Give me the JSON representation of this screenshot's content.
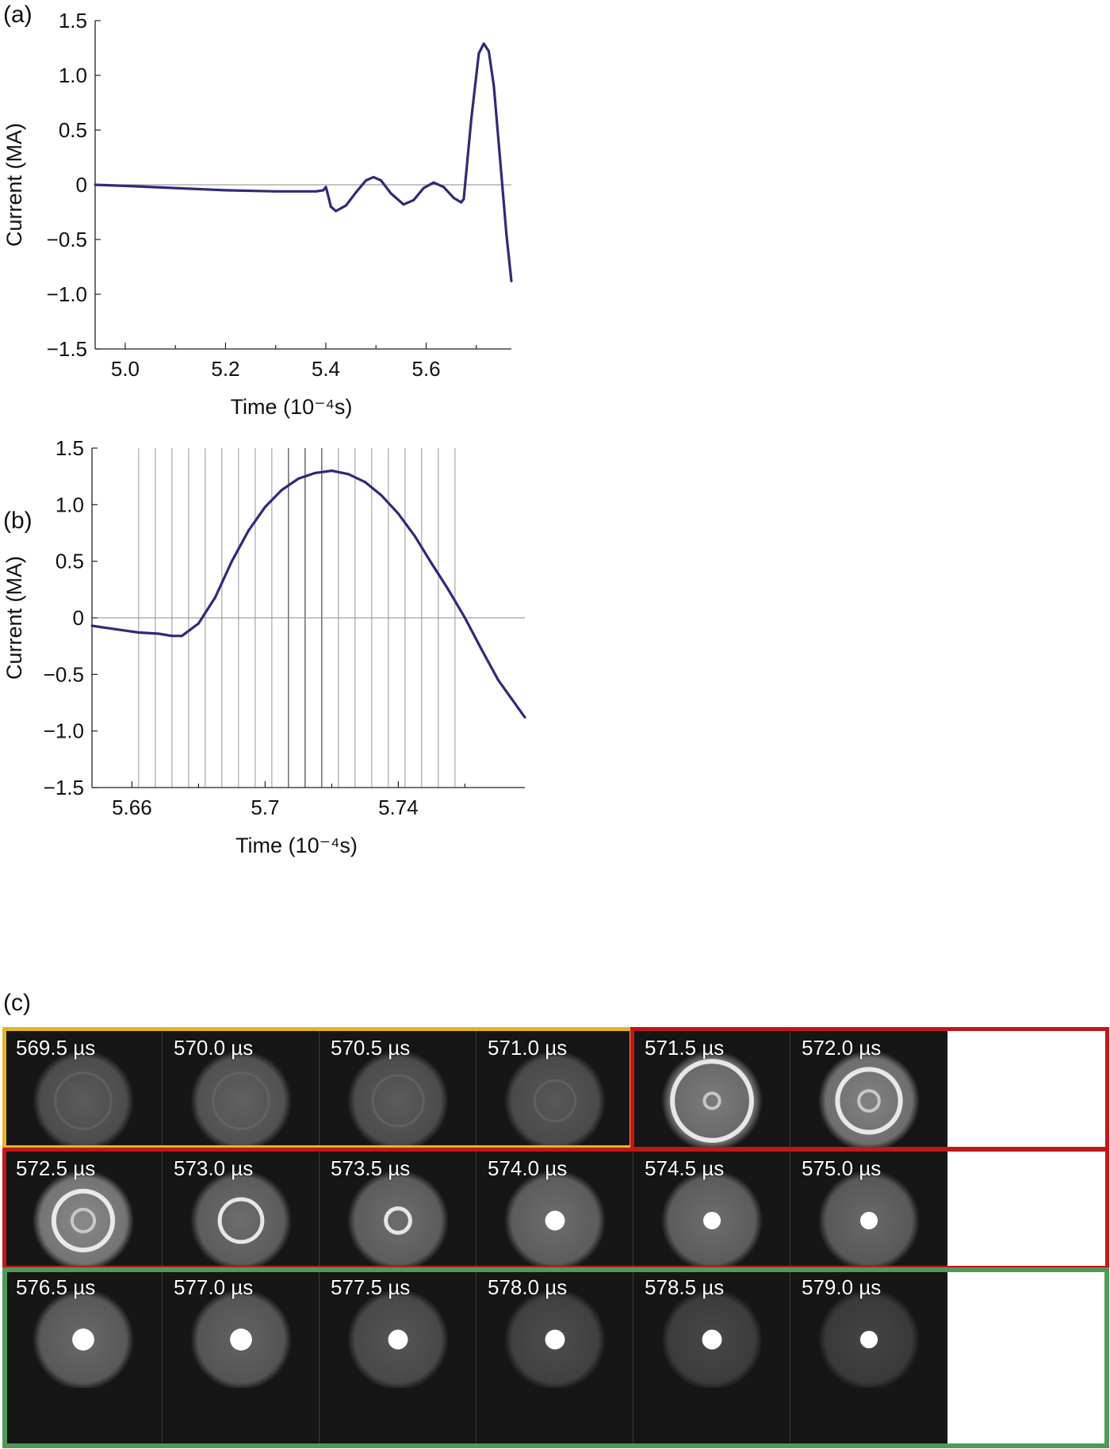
{
  "panels": {
    "a": {
      "label": "(a)"
    },
    "b": {
      "label": "(b)"
    },
    "c": {
      "label": "(c)"
    }
  },
  "chart_data": [
    {
      "id": "a",
      "type": "line",
      "xlabel": "Time (10⁻⁴s)",
      "ylabel": "Current (MA)",
      "xlim": [
        4.94,
        5.77
      ],
      "ylim": [
        -1.5,
        1.5
      ],
      "xticks": [
        5.0,
        5.2,
        5.4,
        5.6
      ],
      "xtick_labels": [
        "5.0",
        "5.2",
        "5.4",
        "5.6"
      ],
      "xticks_minor": [
        5.1,
        5.3,
        5.5,
        5.7
      ],
      "yticks": [
        1.5,
        1.0,
        0.5,
        0,
        -0.5,
        -1.0,
        -1.5
      ],
      "ytick_labels": [
        "1.5",
        "1.0",
        "0.5",
        "0",
        "−0.5",
        "−1.0",
        "−1.5"
      ],
      "zero_line": true,
      "color": "#2e2a7a",
      "series": [
        {
          "x": [
            4.94,
            5.0,
            5.1,
            5.2,
            5.3,
            5.38,
            5.395,
            5.4,
            5.403,
            5.41,
            5.42,
            5.44,
            5.46,
            5.48,
            5.495,
            5.51,
            5.53,
            5.555,
            5.575,
            5.595,
            5.615,
            5.635,
            5.655,
            5.67,
            5.675,
            5.69,
            5.705,
            5.715,
            5.725,
            5.735,
            5.75,
            5.76,
            5.77
          ],
          "y": [
            0.0,
            -0.01,
            -0.03,
            -0.05,
            -0.06,
            -0.06,
            -0.05,
            -0.02,
            -0.07,
            -0.2,
            -0.24,
            -0.19,
            -0.07,
            0.04,
            0.07,
            0.04,
            -0.08,
            -0.18,
            -0.14,
            -0.03,
            0.02,
            -0.02,
            -0.12,
            -0.16,
            -0.13,
            0.6,
            1.2,
            1.29,
            1.22,
            0.9,
            0.1,
            -0.45,
            -0.88
          ]
        }
      ]
    },
    {
      "id": "b",
      "type": "line",
      "xlabel": "Time (10⁻⁴s)",
      "ylabel": "Current (MA)",
      "xlim": [
        5.648,
        5.778
      ],
      "ylim": [
        -1.5,
        1.5
      ],
      "xticks": [
        5.66,
        5.7,
        5.74
      ],
      "xtick_labels": [
        "5.66",
        "5.7",
        "5.74"
      ],
      "xticks_minor": [
        5.68,
        5.72,
        5.76
      ],
      "yticks": [
        1.5,
        1.0,
        0.5,
        0,
        -0.5,
        -1.0,
        -1.5
      ],
      "ytick_labels": [
        "1.5",
        "1.0",
        "0.5",
        "0",
        "−0.5",
        "−1.0",
        "−1.5"
      ],
      "zero_line": true,
      "color": "#2e2a7a",
      "vlines": [
        5.662,
        5.667,
        5.672,
        5.677,
        5.682,
        5.687,
        5.692,
        5.697,
        5.702,
        5.707,
        5.712,
        5.717,
        5.722,
        5.727,
        5.732,
        5.737,
        5.742,
        5.747,
        5.752,
        5.757
      ],
      "series": [
        {
          "x": [
            5.648,
            5.655,
            5.662,
            5.668,
            5.672,
            5.675,
            5.68,
            5.685,
            5.69,
            5.695,
            5.7,
            5.705,
            5.71,
            5.715,
            5.72,
            5.725,
            5.73,
            5.735,
            5.74,
            5.745,
            5.75,
            5.755,
            5.76,
            5.765,
            5.77,
            5.778
          ],
          "y": [
            -0.07,
            -0.1,
            -0.13,
            -0.14,
            -0.16,
            -0.16,
            -0.05,
            0.18,
            0.5,
            0.77,
            0.98,
            1.13,
            1.23,
            1.28,
            1.3,
            1.27,
            1.2,
            1.08,
            0.92,
            0.72,
            0.48,
            0.25,
            0.0,
            -0.28,
            -0.55,
            -0.88
          ]
        }
      ]
    }
  ],
  "frames": [
    {
      "label": "569.5 µs",
      "row": 0,
      "col": 0,
      "kind": "faint",
      "ring": 0.55,
      "core": 0.0,
      "glow": 0.22
    },
    {
      "label": "570.0 µs",
      "row": 0,
      "col": 1,
      "kind": "faint",
      "ring": 0.55,
      "core": 0.0,
      "glow": 0.26
    },
    {
      "label": "570.5 µs",
      "row": 0,
      "col": 2,
      "kind": "faint",
      "ring": 0.5,
      "core": 0.0,
      "glow": 0.22
    },
    {
      "label": "571.0 µs",
      "row": 0,
      "col": 3,
      "kind": "faint",
      "ring": 0.4,
      "core": 0.0,
      "glow": 0.2
    },
    {
      "label": "571.5 µs",
      "row": 0,
      "col": 4,
      "kind": "ring",
      "ring": 0.78,
      "core": 0.15,
      "glow": 0.45
    },
    {
      "label": "572.0 µs",
      "row": 0,
      "col": 5,
      "kind": "ring",
      "ring": 0.62,
      "core": 0.2,
      "glow": 0.5
    },
    {
      "label": "572.5 µs",
      "row": 1,
      "col": 0,
      "kind": "ring",
      "ring": 0.58,
      "core": 0.22,
      "glow": 0.55
    },
    {
      "label": "573.0 µs",
      "row": 1,
      "col": 1,
      "kind": "ring",
      "ring": 0.42,
      "core": 0.0,
      "glow": 0.35
    },
    {
      "label": "573.5 µs",
      "row": 1,
      "col": 2,
      "kind": "ring",
      "ring": 0.24,
      "core": 0.0,
      "glow": 0.35
    },
    {
      "label": "574.0 µs",
      "row": 1,
      "col": 3,
      "kind": "spot",
      "ring": 0.12,
      "core": 0.12,
      "glow": 0.35
    },
    {
      "label": "574.5 µs",
      "row": 1,
      "col": 4,
      "kind": "spot",
      "ring": 0.1,
      "core": 0.1,
      "glow": 0.35
    },
    {
      "label": "575.0 µs",
      "row": 1,
      "col": 5,
      "kind": "spot",
      "ring": 0.1,
      "core": 0.1,
      "glow": 0.32
    },
    {
      "label": "576.5 µs",
      "row": 2,
      "col": 0,
      "kind": "spot",
      "ring": 0.14,
      "core": 0.14,
      "glow": 0.32
    },
    {
      "label": "577.0 µs",
      "row": 2,
      "col": 1,
      "kind": "spot",
      "ring": 0.14,
      "core": 0.14,
      "glow": 0.28
    },
    {
      "label": "577.5 µs",
      "row": 2,
      "col": 2,
      "kind": "spot",
      "ring": 0.12,
      "core": 0.12,
      "glow": 0.18
    },
    {
      "label": "578.0 µs",
      "row": 2,
      "col": 3,
      "kind": "spot",
      "ring": 0.12,
      "core": 0.12,
      "glow": 0.12
    },
    {
      "label": "578.5 µs",
      "row": 2,
      "col": 4,
      "kind": "spot",
      "ring": 0.12,
      "core": 0.12,
      "glow": 0.08
    },
    {
      "label": "579.0 µs",
      "row": 2,
      "col": 5,
      "kind": "spot",
      "ring": 0.1,
      "core": 0.1,
      "glow": 0.06
    }
  ],
  "groups": [
    {
      "name": "group-yellow",
      "color": "#e6b422"
    },
    {
      "name": "group-red",
      "color": "#c01818"
    },
    {
      "name": "group-green",
      "color": "#4f9a58"
    }
  ]
}
